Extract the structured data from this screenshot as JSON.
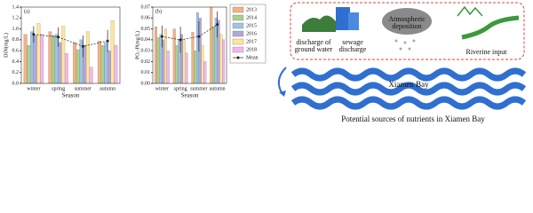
{
  "chart_data": [
    {
      "type": "bar",
      "label": "(a)",
      "ylabel": "DIN(mg/L)",
      "xlabel": "Season",
      "categories": [
        "winter",
        "spring",
        "summer",
        "autumn"
      ],
      "ylim": [
        0,
        1.4
      ],
      "yticks": [
        {
          "value": 0,
          "label": "0.0"
        },
        0.2,
        0.4,
        0.6,
        0.8,
        {
          "value": 1,
          "label": "1.0"
        },
        1.2,
        1.4
      ],
      "series": [
        {
          "name": "2013",
          "color": "#f4b183",
          "values": [
            0.9,
            0.95,
            0.75,
            0.78
          ]
        },
        {
          "name": "2014",
          "color": "#a9d18e",
          "values": [
            0.7,
            0.88,
            0.62,
            0.7
          ]
        },
        {
          "name": "2015",
          "color": "#9dc3e6",
          "values": [
            0.95,
            0.9,
            0.8,
            0.75
          ]
        },
        {
          "name": "2016",
          "color": "#b4a7d6",
          "values": [
            0.88,
            0.75,
            0.7,
            0.6
          ]
        },
        {
          "name": "2017",
          "color": "#ffe699",
          "values": [
            1.1,
            1.05,
            0.95,
            1.15
          ]
        },
        {
          "name": "2018",
          "color": "#f4b6f0",
          "values": [
            0.9,
            0.55,
            0.3,
            0.7
          ]
        },
        {
          "name": "Mean",
          "type": "line",
          "color": "#222222",
          "values": [
            0.9,
            0.85,
            0.68,
            0.78
          ],
          "errors": [
            0.15,
            0.18,
            0.2,
            0.2
          ]
        }
      ]
    },
    {
      "type": "bar",
      "label": "(b)",
      "ylabel": "PO₄-P(mg/L)",
      "xlabel": "Season",
      "categories": [
        "winter",
        "spring",
        "summer",
        "autumn"
      ],
      "ylim": [
        0,
        0.07
      ],
      "yticks": [
        {
          "value": 0,
          "label": "0.00"
        },
        {
          "value": 0.01,
          "label": "0.01"
        },
        {
          "value": 0.02,
          "label": "0.02"
        },
        {
          "value": 0.03,
          "label": "0.03"
        },
        {
          "value": 0.04,
          "label": "0.04"
        },
        {
          "value": 0.05,
          "label": "0.05"
        },
        {
          "value": 0.06,
          "label": "0.06"
        },
        {
          "value": 0.07,
          "label": "0.07"
        }
      ],
      "legend": "right",
      "series": [
        {
          "name": "2013",
          "color": "#f4b183",
          "values": [
            0.052,
            0.05,
            0.047,
            0.07
          ]
        },
        {
          "name": "2014",
          "color": "#a9d18e",
          "values": [
            0.042,
            0.035,
            0.03,
            0.052
          ]
        },
        {
          "name": "2015",
          "color": "#9dc3e6",
          "values": [
            0.045,
            0.04,
            0.065,
            0.06
          ]
        },
        {
          "name": "2016",
          "color": "#b4a7d6",
          "values": [
            0.04,
            0.045,
            0.06,
            0.058
          ]
        },
        {
          "name": "2017",
          "color": "#ffe699",
          "values": [
            0.05,
            0.04,
            0.035,
            0.045
          ]
        },
        {
          "name": "2018",
          "color": "#f4b6f0",
          "values": [
            0.03,
            0.028,
            0.02,
            0.04
          ]
        },
        {
          "name": "Mean",
          "type": "line",
          "color": "#222222",
          "values": [
            0.043,
            0.04,
            0.043,
            0.054
          ],
          "errors": [
            0.01,
            0.012,
            0.014,
            0.012
          ]
        }
      ]
    }
  ],
  "diagram": {
    "sources": [
      {
        "label": "discharge of ground water"
      },
      {
        "label": "sewage discharge"
      },
      {
        "label": "Atmospheric deposition"
      },
      {
        "label": "Riverine input"
      }
    ],
    "bay_label": "Xiamen Bay",
    "caption": "Potential sources of nutrients in Xiamen Bay"
  }
}
